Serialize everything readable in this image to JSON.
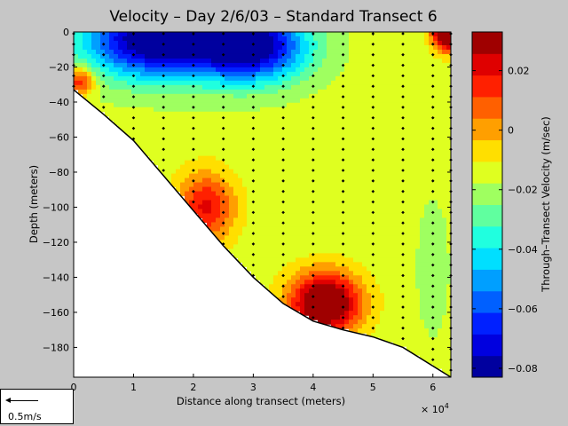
{
  "chart_data": {
    "type": "heatmap",
    "title": "Velocity – Day 2/6/03 – Standard Transect 6",
    "xlabel": "Distance along transect (meters)",
    "ylabel": "Depth (meters)",
    "x_exponent_label": "× 10",
    "x_exponent_power": "4",
    "xlim": [
      0,
      63000
    ],
    "ylim": [
      -197,
      0
    ],
    "x_ticks": [
      0,
      10000,
      20000,
      30000,
      40000,
      50000,
      60000
    ],
    "x_tick_labels": [
      "0",
      "1",
      "2",
      "3",
      "4",
      "5",
      "6"
    ],
    "y_ticks": [
      0,
      -20,
      -40,
      -60,
      -80,
      -100,
      -120,
      -140,
      -160,
      -180
    ],
    "y_tick_labels": [
      "0",
      "−20",
      "−40",
      "−60",
      "−80",
      "−100",
      "−120",
      "−140",
      "−160",
      "−180"
    ],
    "colorbar": {
      "label": "Through–Transect Velocity (m/sec)",
      "range": [
        -0.083,
        0.033
      ],
      "ticks": [
        0.02,
        0,
        -0.02,
        -0.04,
        -0.06,
        -0.08
      ],
      "tick_labels": [
        "0.02",
        "0",
        "−0.02",
        "−0.04",
        "−0.06",
        "−0.08"
      ]
    },
    "bottom_profile": [
      {
        "x": 0,
        "depth": -33
      },
      {
        "x": 5000,
        "depth": -47
      },
      {
        "x": 10000,
        "depth": -62
      },
      {
        "x": 15000,
        "depth": -82
      },
      {
        "x": 20000,
        "depth": -102
      },
      {
        "x": 25000,
        "depth": -122
      },
      {
        "x": 30000,
        "depth": -140
      },
      {
        "x": 35000,
        "depth": -155
      },
      {
        "x": 40000,
        "depth": -165
      },
      {
        "x": 45000,
        "depth": -170
      },
      {
        "x": 50000,
        "depth": -174
      },
      {
        "x": 55000,
        "depth": -180
      },
      {
        "x": 63000,
        "depth": -197
      }
    ],
    "velocity_features": [
      {
        "x": 14000,
        "depth": -4,
        "velocity": -0.09,
        "sx": 12000,
        "sy": 22
      },
      {
        "x": 30000,
        "depth": -8,
        "velocity": -0.08,
        "sx": 9000,
        "sy": 20
      },
      {
        "x": 42000,
        "depth": -155,
        "velocity": 0.045,
        "sx": 6000,
        "sy": 18
      },
      {
        "x": 22000,
        "depth": -100,
        "velocity": 0.02,
        "sx": 5000,
        "sy": 20
      },
      {
        "x": 1000,
        "depth": -28,
        "velocity": 0.02,
        "sx": 2500,
        "sy": 8
      },
      {
        "x": 62500,
        "depth": 0,
        "velocity": 0.06,
        "sx": 2500,
        "sy": 10
      },
      {
        "x": 60000,
        "depth": -135,
        "velocity": -0.02,
        "sx": 3500,
        "sy": 50
      }
    ],
    "sample_profiles_x": [
      0,
      5000,
      10000,
      15000,
      20000,
      25000,
      30000,
      35000,
      40000,
      45000,
      50000,
      55000,
      60000,
      63000
    ],
    "sample_depth_step": 6
  },
  "scale_reference": {
    "label": "0.5m/s"
  }
}
